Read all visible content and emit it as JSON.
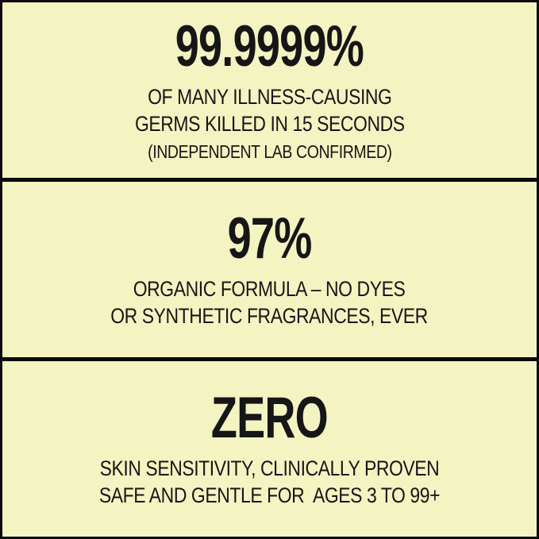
{
  "page": {
    "background_color": "#f4f4c3",
    "text_color": "#161616",
    "border_color": "#0b0b0b"
  },
  "panels": [
    {
      "stat": "99.9999%",
      "description": "OF MANY ILLNESS-CAUSING\nGERMS KILLED IN 15 SECONDS",
      "note": "(INDEPENDENT LAB CONFIRMED)"
    },
    {
      "stat": "97%",
      "description": "ORGANIC FORMULA – NO DYES\nOR SYNTHETIC FRAGRANCES, EVER"
    },
    {
      "stat": "ZERO",
      "description": "SKIN SENSITIVITY, CLINICALLY PROVEN\nSAFE AND GENTLE FOR  AGES 3 TO 99+"
    }
  ]
}
